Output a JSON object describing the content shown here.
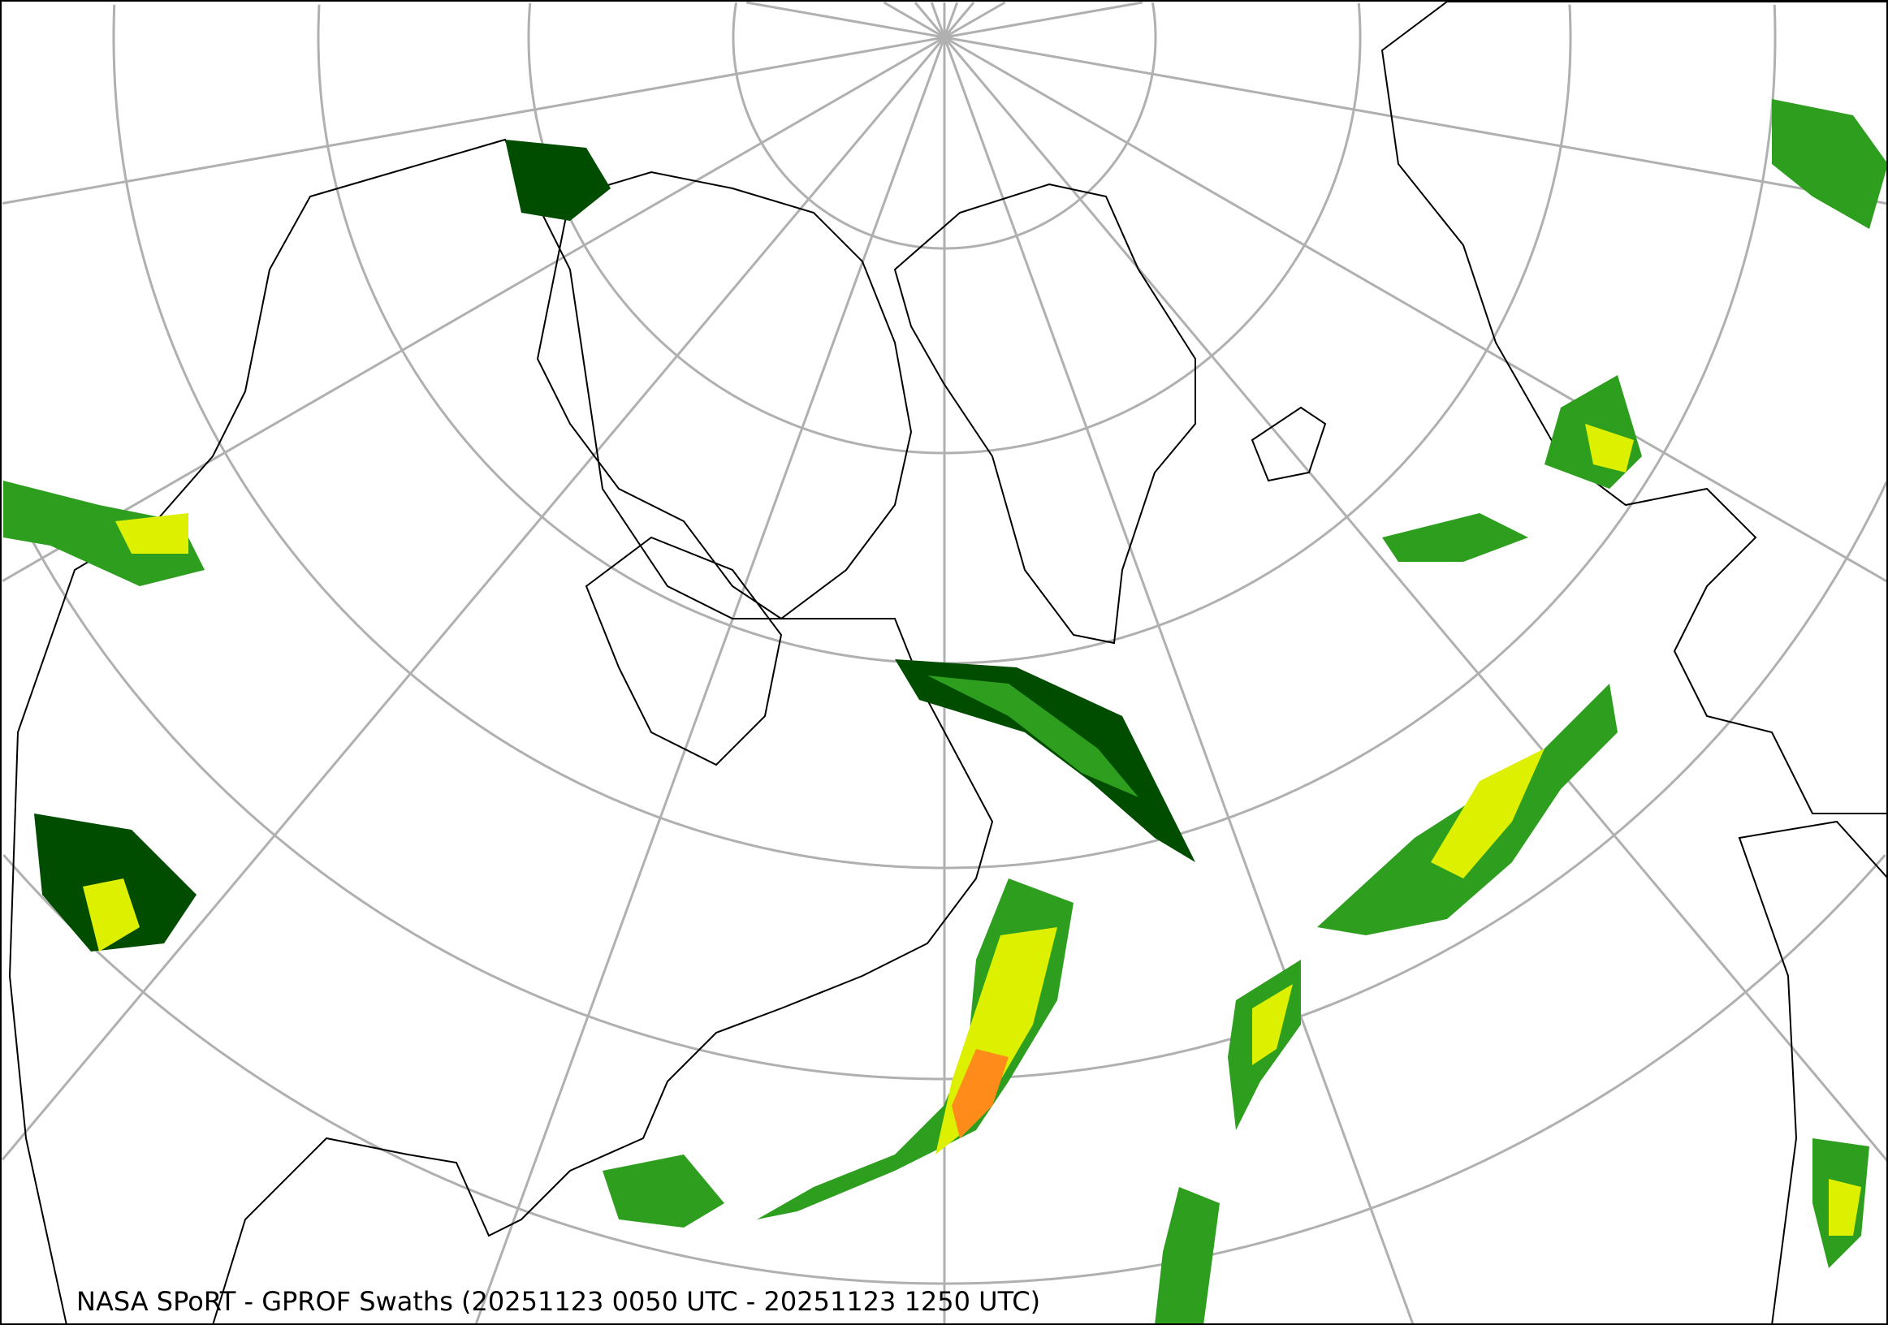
{
  "caption": "NASA SPoRT - GPROF Swaths (20251123 0050 UTC - 20251123 1250 UTC)",
  "colors": {
    "graticule": "#b0b0b0",
    "coastline": "#000000",
    "precip_light": "#004d00",
    "precip_mid": "#2e9e1f",
    "precip_bright": "#66ff33",
    "precip_yellow": "#ddf000",
    "precip_orange": "#ff8c1a",
    "precip_red": "#e63d00"
  }
}
